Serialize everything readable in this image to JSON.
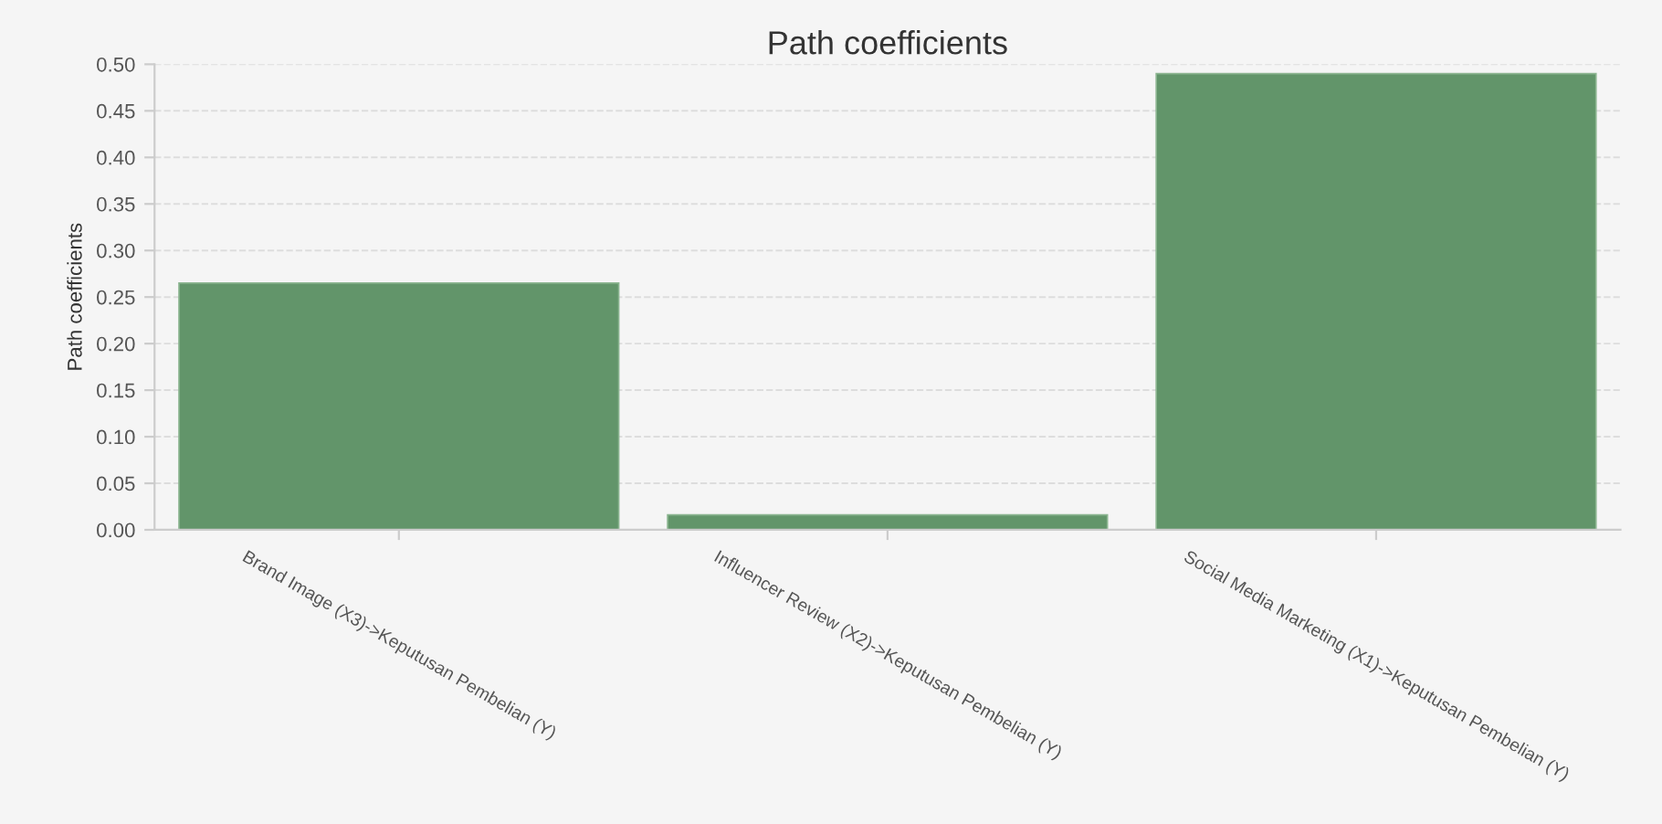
{
  "chart_data": {
    "type": "bar",
    "title": "Path coefficients",
    "ylabel": "Path coefficients",
    "categories": [
      "Brand Image (X3)->Keputusan Pembelian (Y)",
      "Influencer Review (X2)->Keputusan Pembelian (Y)",
      "Social Media Marketing (X1)->Keputusan Pembelian (Y)"
    ],
    "values": [
      0.265,
      0.016,
      0.49
    ],
    "color": "#62956a",
    "ylim": [
      0,
      0.5
    ],
    "yticks": [
      {
        "value": 0,
        "label": "0.00"
      },
      {
        "value": 0.05,
        "label": "0.05"
      },
      {
        "value": 0.1,
        "label": "0.10"
      },
      {
        "value": 0.15,
        "label": "0.15"
      },
      {
        "value": 0.2,
        "label": "0.20"
      },
      {
        "value": 0.25,
        "label": "0.25"
      },
      {
        "value": 0.3,
        "label": "0.30"
      },
      {
        "value": 0.35,
        "label": "0.35"
      },
      {
        "value": 0.4,
        "label": "0.40"
      },
      {
        "value": 0.45,
        "label": "0.45"
      },
      {
        "value": 0.5,
        "label": "0.50"
      }
    ],
    "grid": "y"
  }
}
